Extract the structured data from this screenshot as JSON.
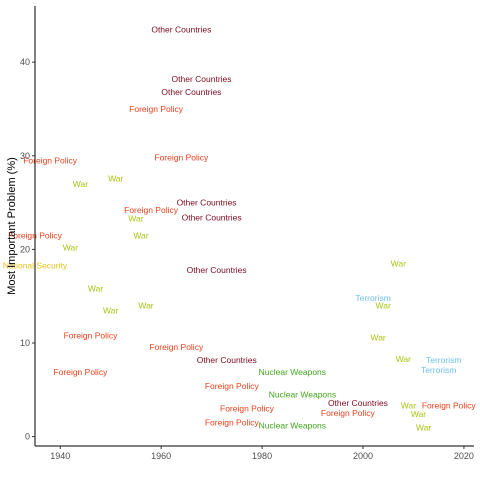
{
  "chart_data": {
    "type": "scatter",
    "title": "",
    "xlabel": "",
    "ylabel": "Most Important Problem (%)",
    "xlim": [
      1935,
      2022
    ],
    "ylim": [
      -1,
      46
    ],
    "x_ticks": [
      1940,
      1960,
      1980,
      2000,
      2020
    ],
    "y_ticks": [
      0,
      10,
      20,
      30,
      40
    ],
    "grid": false,
    "legend": "none",
    "categories": {
      "Other Countries": "#7b0a1f",
      "Foreign Policy": "#e8411c",
      "National Security": "#e6c21e",
      "War": "#a8c414",
      "Nuclear Weapons": "#41a51e",
      "Terrorism": "#6fc0e6"
    },
    "points": [
      {
        "label": "Other Countries",
        "x": 1964,
        "y": 43.5
      },
      {
        "label": "Other Countries",
        "x": 1968,
        "y": 38.2
      },
      {
        "label": "Other Countries",
        "x": 1966,
        "y": 36.8
      },
      {
        "label": "Foreign Policy",
        "x": 1959,
        "y": 35.0
      },
      {
        "label": "Foreign Policy",
        "x": 1938,
        "y": 29.5
      },
      {
        "label": "Foreign Policy",
        "x": 1964,
        "y": 29.8
      },
      {
        "label": "War",
        "x": 1944,
        "y": 27.0
      },
      {
        "label": "War",
        "x": 1951,
        "y": 27.6
      },
      {
        "label": "Other Countries",
        "x": 1969,
        "y": 25.0
      },
      {
        "label": "Foreign Policy",
        "x": 1958,
        "y": 24.2
      },
      {
        "label": "Other Countries",
        "x": 1970,
        "y": 23.4
      },
      {
        "label": "War",
        "x": 1955,
        "y": 23.3
      },
      {
        "label": "Foreign Policy",
        "x": 1935,
        "y": 21.5
      },
      {
        "label": "War",
        "x": 1956,
        "y": 21.5
      },
      {
        "label": "War",
        "x": 1942,
        "y": 20.2
      },
      {
        "label": "National Security",
        "x": 1935,
        "y": 18.3
      },
      {
        "label": "Other Countries",
        "x": 1971,
        "y": 17.8
      },
      {
        "label": "War",
        "x": 2007,
        "y": 18.5
      },
      {
        "label": "War",
        "x": 1947,
        "y": 15.8
      },
      {
        "label": "War",
        "x": 1957,
        "y": 14.0
      },
      {
        "label": "War",
        "x": 1950,
        "y": 13.5
      },
      {
        "label": "Terrorism",
        "x": 2002,
        "y": 14.8
      },
      {
        "label": "War",
        "x": 2004,
        "y": 14.0
      },
      {
        "label": "Foreign Policy",
        "x": 1946,
        "y": 10.8
      },
      {
        "label": "Foreign Policy",
        "x": 1963,
        "y": 9.6
      },
      {
        "label": "War",
        "x": 2003,
        "y": 10.6
      },
      {
        "label": "Other Countries",
        "x": 1973,
        "y": 8.2
      },
      {
        "label": "War",
        "x": 2008,
        "y": 8.3
      },
      {
        "label": "Terrorism",
        "x": 2016,
        "y": 8.2
      },
      {
        "label": "Foreign Policy",
        "x": 1944,
        "y": 6.9
      },
      {
        "label": "Nuclear Weapons",
        "x": 1986,
        "y": 6.9
      },
      {
        "label": "Terrorism",
        "x": 2015,
        "y": 7.1
      },
      {
        "label": "Foreign Policy",
        "x": 1974,
        "y": 5.4
      },
      {
        "label": "Nuclear Weapons",
        "x": 1988,
        "y": 4.5
      },
      {
        "label": "Other Countries",
        "x": 1999,
        "y": 3.6
      },
      {
        "label": "War",
        "x": 2009,
        "y": 3.3
      },
      {
        "label": "Foreign Policy",
        "x": 2017,
        "y": 3.3
      },
      {
        "label": "Foreign Policy",
        "x": 1977,
        "y": 3.0
      },
      {
        "label": "Foreign Policy",
        "x": 1997,
        "y": 2.5
      },
      {
        "label": "War",
        "x": 2011,
        "y": 2.4
      },
      {
        "label": "Foreign Policy",
        "x": 1974,
        "y": 1.5
      },
      {
        "label": "Nuclear Weapons",
        "x": 1986,
        "y": 1.2
      },
      {
        "label": "War",
        "x": 2012,
        "y": 1.0
      }
    ]
  }
}
